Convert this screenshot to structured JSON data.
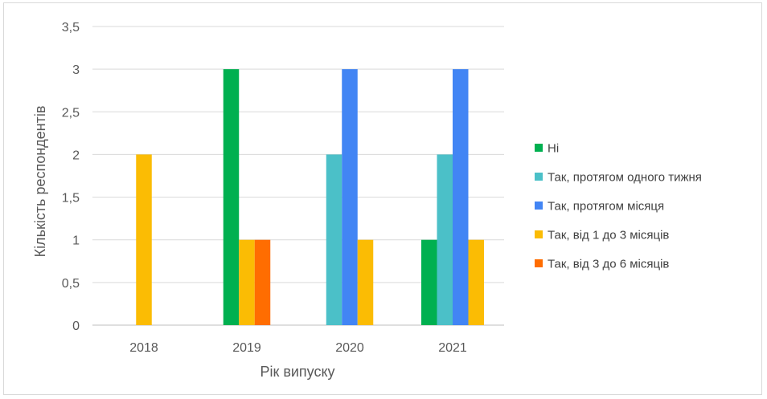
{
  "chart_data": {
    "type": "bar",
    "categories": [
      "2018",
      "2019",
      "2020",
      "2021"
    ],
    "series": [
      {
        "name": "Ні",
        "color": "#00b050",
        "values": [
          0,
          3,
          0,
          1
        ]
      },
      {
        "name": "Так, протягом одного тижня",
        "color": "#4bc0c8",
        "values": [
          0,
          0,
          2,
          2
        ]
      },
      {
        "name": "Так, протягом місяця",
        "color": "#4285f4",
        "values": [
          0,
          0,
          3,
          3
        ]
      },
      {
        "name": "Так, від 1 до 3 місяців",
        "color": "#fbbc04",
        "values": [
          2,
          1,
          1,
          1
        ]
      },
      {
        "name": "Так, від 3 до 6 місяців",
        "color": "#ff6d01",
        "values": [
          0,
          1,
          0,
          0
        ]
      }
    ],
    "xlabel": "Рік випуску",
    "ylabel": "Кількість респондентів",
    "ylim": [
      0,
      3.5
    ],
    "yticks": [
      "0",
      "0,5",
      "1",
      "1,5",
      "2",
      "2,5",
      "3",
      "3,5"
    ],
    "grid": true,
    "legend": "right"
  }
}
